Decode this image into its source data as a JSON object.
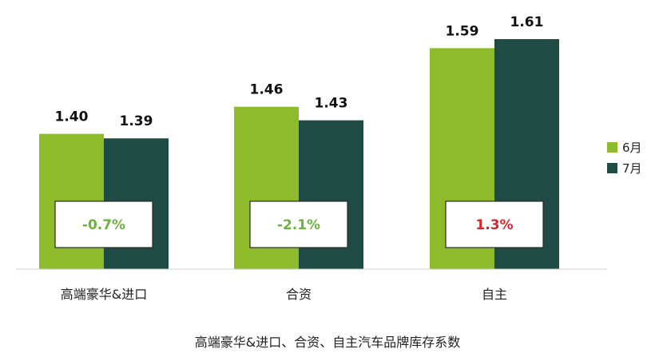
{
  "chart_data": {
    "type": "bar",
    "title": "高端豪华&进口、合资、自主汽车品牌库存系数",
    "categories": [
      "高端豪华&进口",
      "合资",
      "自主"
    ],
    "series": [
      {
        "name": "6月",
        "values": [
          1.4,
          1.46,
          1.59
        ],
        "labels": [
          "1.40",
          "1.46",
          "1.59"
        ],
        "color": "#8dbb2b"
      },
      {
        "name": "7月",
        "values": [
          1.39,
          1.43,
          1.61
        ],
        "labels": [
          "1.39",
          "1.43",
          "1.61"
        ],
        "color": "#1f4b45"
      }
    ],
    "changes": [
      {
        "text": "-0.7%",
        "color": "#6db33f"
      },
      {
        "text": "-2.1%",
        "color": "#6db33f"
      },
      {
        "text": "1.3%",
        "color": "#e0202a"
      }
    ],
    "ylim": [
      1.1,
      1.61
    ],
    "grid": false,
    "legend_position": "right"
  }
}
